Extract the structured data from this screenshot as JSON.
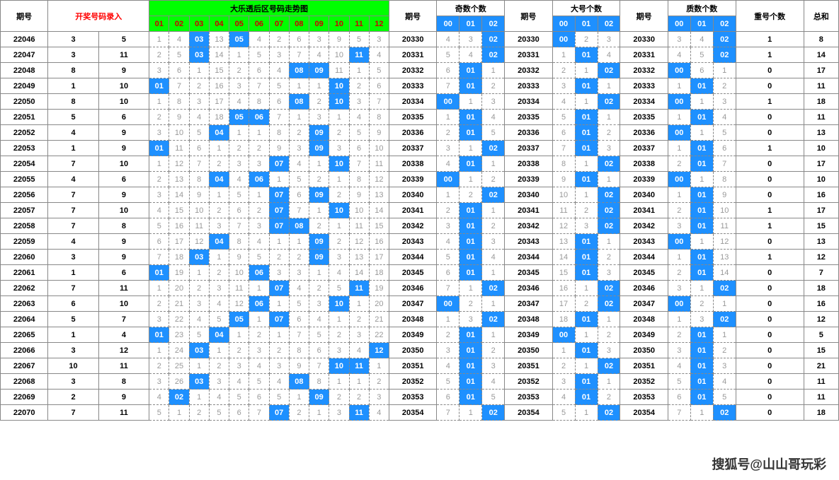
{
  "headers": {
    "period": "期号",
    "input": "开奖号码录入",
    "trend": "大乐透后区号码走势图",
    "trend_cols": [
      "01",
      "02",
      "03",
      "04",
      "05",
      "06",
      "07",
      "08",
      "09",
      "10",
      "11",
      "12"
    ],
    "stat_period": "期号",
    "odd": "奇数个数",
    "big": "大号个数",
    "prime": "质数个数",
    "repeat": "重号个数",
    "sum": "总和",
    "sub012": [
      "00",
      "01",
      "02"
    ]
  },
  "colors": {
    "header_green": "#00ff00",
    "hit_blue": "#1e90ff",
    "red": "#ff0000",
    "faded": "#999999",
    "border": "#888888"
  },
  "rows": [
    {
      "p": "22046",
      "in": [
        3,
        5
      ],
      "hits": [
        3,
        5
      ],
      "miss": [
        1,
        4,
        null,
        13,
        null,
        4,
        2,
        6,
        3,
        9,
        5,
        3
      ],
      "sp": "20330",
      "odd": [
        4,
        3,
        "02"
      ],
      "big": [
        "00",
        2,
        3
      ],
      "prime": [
        3,
        4,
        "02"
      ],
      "rep": 1,
      "sum": 8
    },
    {
      "p": "22047",
      "in": [
        3,
        11
      ],
      "hits": [
        3,
        11
      ],
      "miss": [
        2,
        5,
        null,
        14,
        1,
        5,
        3,
        7,
        4,
        10,
        null,
        4
      ],
      "sp": "20331",
      "odd": [
        5,
        4,
        "02"
      ],
      "big": [
        1,
        "01",
        4
      ],
      "prime": [
        4,
        5,
        "02"
      ],
      "rep": 1,
      "sum": 14
    },
    {
      "p": "22048",
      "in": [
        8,
        9
      ],
      "hits": [
        8,
        9
      ],
      "miss": [
        3,
        6,
        1,
        15,
        2,
        6,
        4,
        null,
        null,
        11,
        1,
        5
      ],
      "sp": "20332",
      "odd": [
        6,
        "01",
        1
      ],
      "big": [
        2,
        1,
        "02"
      ],
      "prime": [
        "00",
        6,
        1
      ],
      "rep": 0,
      "sum": 17
    },
    {
      "p": "22049",
      "in": [
        1,
        10
      ],
      "hits": [
        1,
        10
      ],
      "miss": [
        null,
        7,
        2,
        16,
        3,
        7,
        5,
        1,
        1,
        null,
        2,
        6
      ],
      "sp": "20333",
      "odd": [
        7,
        "01",
        2
      ],
      "big": [
        3,
        "01",
        1
      ],
      "prime": [
        1,
        "01",
        2
      ],
      "rep": 0,
      "sum": 11
    },
    {
      "p": "22050",
      "in": [
        8,
        10
      ],
      "hits": [
        8,
        10
      ],
      "miss": [
        1,
        8,
        3,
        17,
        4,
        8,
        6,
        null,
        2,
        null,
        3,
        7
      ],
      "sp": "20334",
      "odd": [
        "00",
        1,
        3
      ],
      "big": [
        4,
        1,
        "02"
      ],
      "prime": [
        "00",
        1,
        3
      ],
      "rep": 1,
      "sum": 18
    },
    {
      "p": "22051",
      "in": [
        5,
        6
      ],
      "hits": [
        5,
        6
      ],
      "miss": [
        2,
        9,
        4,
        18,
        null,
        null,
        7,
        1,
        3,
        1,
        4,
        8
      ],
      "sp": "20335",
      "odd": [
        1,
        "01",
        4
      ],
      "big": [
        5,
        "01",
        1
      ],
      "prime": [
        1,
        "01",
        4
      ],
      "rep": 0,
      "sum": 11
    },
    {
      "p": "22052",
      "in": [
        4,
        9
      ],
      "hits": [
        4,
        9
      ],
      "miss": [
        3,
        10,
        5,
        null,
        1,
        1,
        8,
        2,
        null,
        2,
        5,
        9
      ],
      "sp": "20336",
      "odd": [
        2,
        "01",
        5
      ],
      "big": [
        6,
        "01",
        2
      ],
      "prime": [
        "00",
        1,
        5
      ],
      "rep": 0,
      "sum": 13
    },
    {
      "p": "22053",
      "in": [
        1,
        9
      ],
      "hits": [
        1,
        9
      ],
      "miss": [
        null,
        11,
        6,
        1,
        2,
        2,
        9,
        3,
        null,
        3,
        6,
        10
      ],
      "sp": "20337",
      "odd": [
        3,
        1,
        "02"
      ],
      "big": [
        7,
        "01",
        3
      ],
      "prime": [
        1,
        "01",
        6
      ],
      "rep": 1,
      "sum": 10
    },
    {
      "p": "22054",
      "in": [
        7,
        10
      ],
      "hits": [
        7,
        10
      ],
      "miss": [
        1,
        12,
        7,
        2,
        3,
        3,
        null,
        4,
        1,
        null,
        7,
        11
      ],
      "sp": "20338",
      "odd": [
        4,
        "01",
        1
      ],
      "big": [
        8,
        1,
        "02"
      ],
      "prime": [
        2,
        "01",
        7
      ],
      "rep": 0,
      "sum": 17
    },
    {
      "p": "22055",
      "in": [
        4,
        6
      ],
      "hits": [
        4,
        6
      ],
      "miss": [
        2,
        13,
        8,
        null,
        4,
        null,
        1,
        5,
        2,
        1,
        8,
        12
      ],
      "sp": "20339",
      "odd": [
        "00",
        1,
        2
      ],
      "big": [
        9,
        "01",
        1
      ],
      "prime": [
        "00",
        1,
        8
      ],
      "rep": 0,
      "sum": 10
    },
    {
      "p": "22056",
      "in": [
        7,
        9
      ],
      "hits": [
        7,
        9
      ],
      "miss": [
        3,
        14,
        9,
        1,
        5,
        1,
        null,
        6,
        null,
        2,
        9,
        13
      ],
      "sp": "20340",
      "odd": [
        1,
        2,
        "02"
      ],
      "big": [
        10,
        1,
        "02"
      ],
      "prime": [
        1,
        "01",
        9
      ],
      "rep": 0,
      "sum": 16
    },
    {
      "p": "22057",
      "in": [
        7,
        10
      ],
      "hits": [
        7,
        10
      ],
      "miss": [
        4,
        15,
        10,
        2,
        6,
        2,
        null,
        7,
        1,
        null,
        10,
        14
      ],
      "sp": "20341",
      "odd": [
        2,
        "01",
        1
      ],
      "big": [
        11,
        2,
        "02"
      ],
      "prime": [
        2,
        "01",
        10
      ],
      "rep": 1,
      "sum": 17
    },
    {
      "p": "22058",
      "in": [
        7,
        8
      ],
      "hits": [
        7,
        8
      ],
      "miss": [
        5,
        16,
        11,
        3,
        7,
        3,
        null,
        null,
        2,
        1,
        11,
        15
      ],
      "sp": "20342",
      "odd": [
        3,
        "01",
        2
      ],
      "big": [
        12,
        3,
        "02"
      ],
      "prime": [
        3,
        "01",
        11
      ],
      "rep": 1,
      "sum": 15
    },
    {
      "p": "22059",
      "in": [
        4,
        9
      ],
      "hits": [
        4,
        9
      ],
      "miss": [
        6,
        17,
        12,
        null,
        8,
        4,
        1,
        1,
        null,
        2,
        12,
        16
      ],
      "sp": "20343",
      "odd": [
        4,
        "01",
        3
      ],
      "big": [
        13,
        "01",
        1
      ],
      "prime": [
        "00",
        1,
        12
      ],
      "rep": 0,
      "sum": 13
    },
    {
      "p": "22060",
      "in": [
        3,
        9
      ],
      "hits": [
        3,
        9
      ],
      "miss": [
        7,
        18,
        null,
        1,
        9,
        5,
        2,
        2,
        null,
        3,
        13,
        17
      ],
      "sp": "20344",
      "odd": [
        5,
        "01",
        4
      ],
      "big": [
        14,
        "01",
        2
      ],
      "prime": [
        1,
        "01",
        13
      ],
      "rep": 1,
      "sum": 12
    },
    {
      "p": "22061",
      "in": [
        1,
        6
      ],
      "hits": [
        1,
        6
      ],
      "miss": [
        null,
        19,
        1,
        2,
        10,
        null,
        3,
        3,
        1,
        4,
        14,
        18
      ],
      "sp": "20345",
      "odd": [
        6,
        "01",
        1
      ],
      "big": [
        15,
        "01",
        3
      ],
      "prime": [
        2,
        "01",
        14
      ],
      "rep": 0,
      "sum": 7
    },
    {
      "p": "22062",
      "in": [
        7,
        11
      ],
      "hits": [
        7,
        11
      ],
      "miss": [
        1,
        20,
        2,
        3,
        11,
        1,
        null,
        4,
        2,
        5,
        null,
        19
      ],
      "sp": "20346",
      "odd": [
        7,
        1,
        "02"
      ],
      "big": [
        16,
        1,
        "02"
      ],
      "prime": [
        3,
        1,
        "02"
      ],
      "rep": 0,
      "sum": 18
    },
    {
      "p": "22063",
      "in": [
        6,
        10
      ],
      "hits": [
        6,
        10
      ],
      "miss": [
        2,
        21,
        3,
        4,
        12,
        null,
        1,
        5,
        3,
        null,
        1,
        20
      ],
      "sp": "20347",
      "odd": [
        "00",
        2,
        1
      ],
      "big": [
        17,
        2,
        "02"
      ],
      "prime": [
        "00",
        2,
        1
      ],
      "rep": 0,
      "sum": 16
    },
    {
      "p": "22064",
      "in": [
        5,
        7
      ],
      "hits": [
        5,
        7
      ],
      "miss": [
        3,
        22,
        4,
        5,
        null,
        1,
        null,
        6,
        4,
        1,
        2,
        21
      ],
      "sp": "20348",
      "odd": [
        1,
        3,
        "02"
      ],
      "big": [
        18,
        "01",
        1
      ],
      "prime": [
        1,
        3,
        "02"
      ],
      "rep": 0,
      "sum": 12
    },
    {
      "p": "22065",
      "in": [
        1,
        4
      ],
      "hits": [
        1,
        4
      ],
      "miss": [
        null,
        23,
        5,
        null,
        1,
        2,
        1,
        7,
        5,
        2,
        3,
        22
      ],
      "sp": "20349",
      "odd": [
        2,
        "01",
        1
      ],
      "big": [
        "00",
        1,
        2
      ],
      "prime": [
        2,
        "01",
        1
      ],
      "rep": 0,
      "sum": 5
    },
    {
      "p": "22066",
      "in": [
        3,
        12
      ],
      "hits": [
        3,
        12
      ],
      "miss": [
        1,
        24,
        null,
        1,
        2,
        3,
        2,
        8,
        6,
        3,
        4,
        null
      ],
      "sp": "20350",
      "odd": [
        3,
        "01",
        2
      ],
      "big": [
        1,
        "01",
        3
      ],
      "prime": [
        3,
        "01",
        2
      ],
      "rep": 0,
      "sum": 15
    },
    {
      "p": "22067",
      "in": [
        10,
        11
      ],
      "hits": [
        10,
        11
      ],
      "miss": [
        2,
        25,
        1,
        2,
        3,
        4,
        3,
        9,
        7,
        null,
        null,
        1
      ],
      "sp": "20351",
      "odd": [
        4,
        "01",
        3
      ],
      "big": [
        2,
        1,
        "02"
      ],
      "prime": [
        4,
        "01",
        3
      ],
      "rep": 0,
      "sum": 21
    },
    {
      "p": "22068",
      "in": [
        3,
        8
      ],
      "hits": [
        3,
        8
      ],
      "miss": [
        3,
        26,
        null,
        3,
        4,
        5,
        4,
        null,
        8,
        1,
        1,
        2
      ],
      "sp": "20352",
      "odd": [
        5,
        "01",
        4
      ],
      "big": [
        3,
        "01",
        1
      ],
      "prime": [
        5,
        "01",
        4
      ],
      "rep": 0,
      "sum": 11
    },
    {
      "p": "22069",
      "in": [
        2,
        9
      ],
      "hits": [
        2,
        9
      ],
      "miss": [
        4,
        null,
        1,
        4,
        5,
        6,
        5,
        1,
        null,
        2,
        2,
        3
      ],
      "sp": "20353",
      "odd": [
        6,
        "01",
        5
      ],
      "big": [
        4,
        "01",
        2
      ],
      "prime": [
        6,
        "01",
        5
      ],
      "rep": 0,
      "sum": 11
    },
    {
      "p": "22070",
      "in": [
        7,
        11
      ],
      "hits": [
        7,
        11
      ],
      "miss": [
        5,
        1,
        2,
        5,
        6,
        7,
        null,
        2,
        1,
        3,
        null,
        4
      ],
      "sp": "20354",
      "odd": [
        7,
        1,
        "02"
      ],
      "big": [
        5,
        1,
        "02"
      ],
      "prime": [
        7,
        1,
        "02"
      ],
      "rep": 0,
      "sum": 18
    }
  ],
  "watermark": "搜狐号@山山哥玩彩"
}
